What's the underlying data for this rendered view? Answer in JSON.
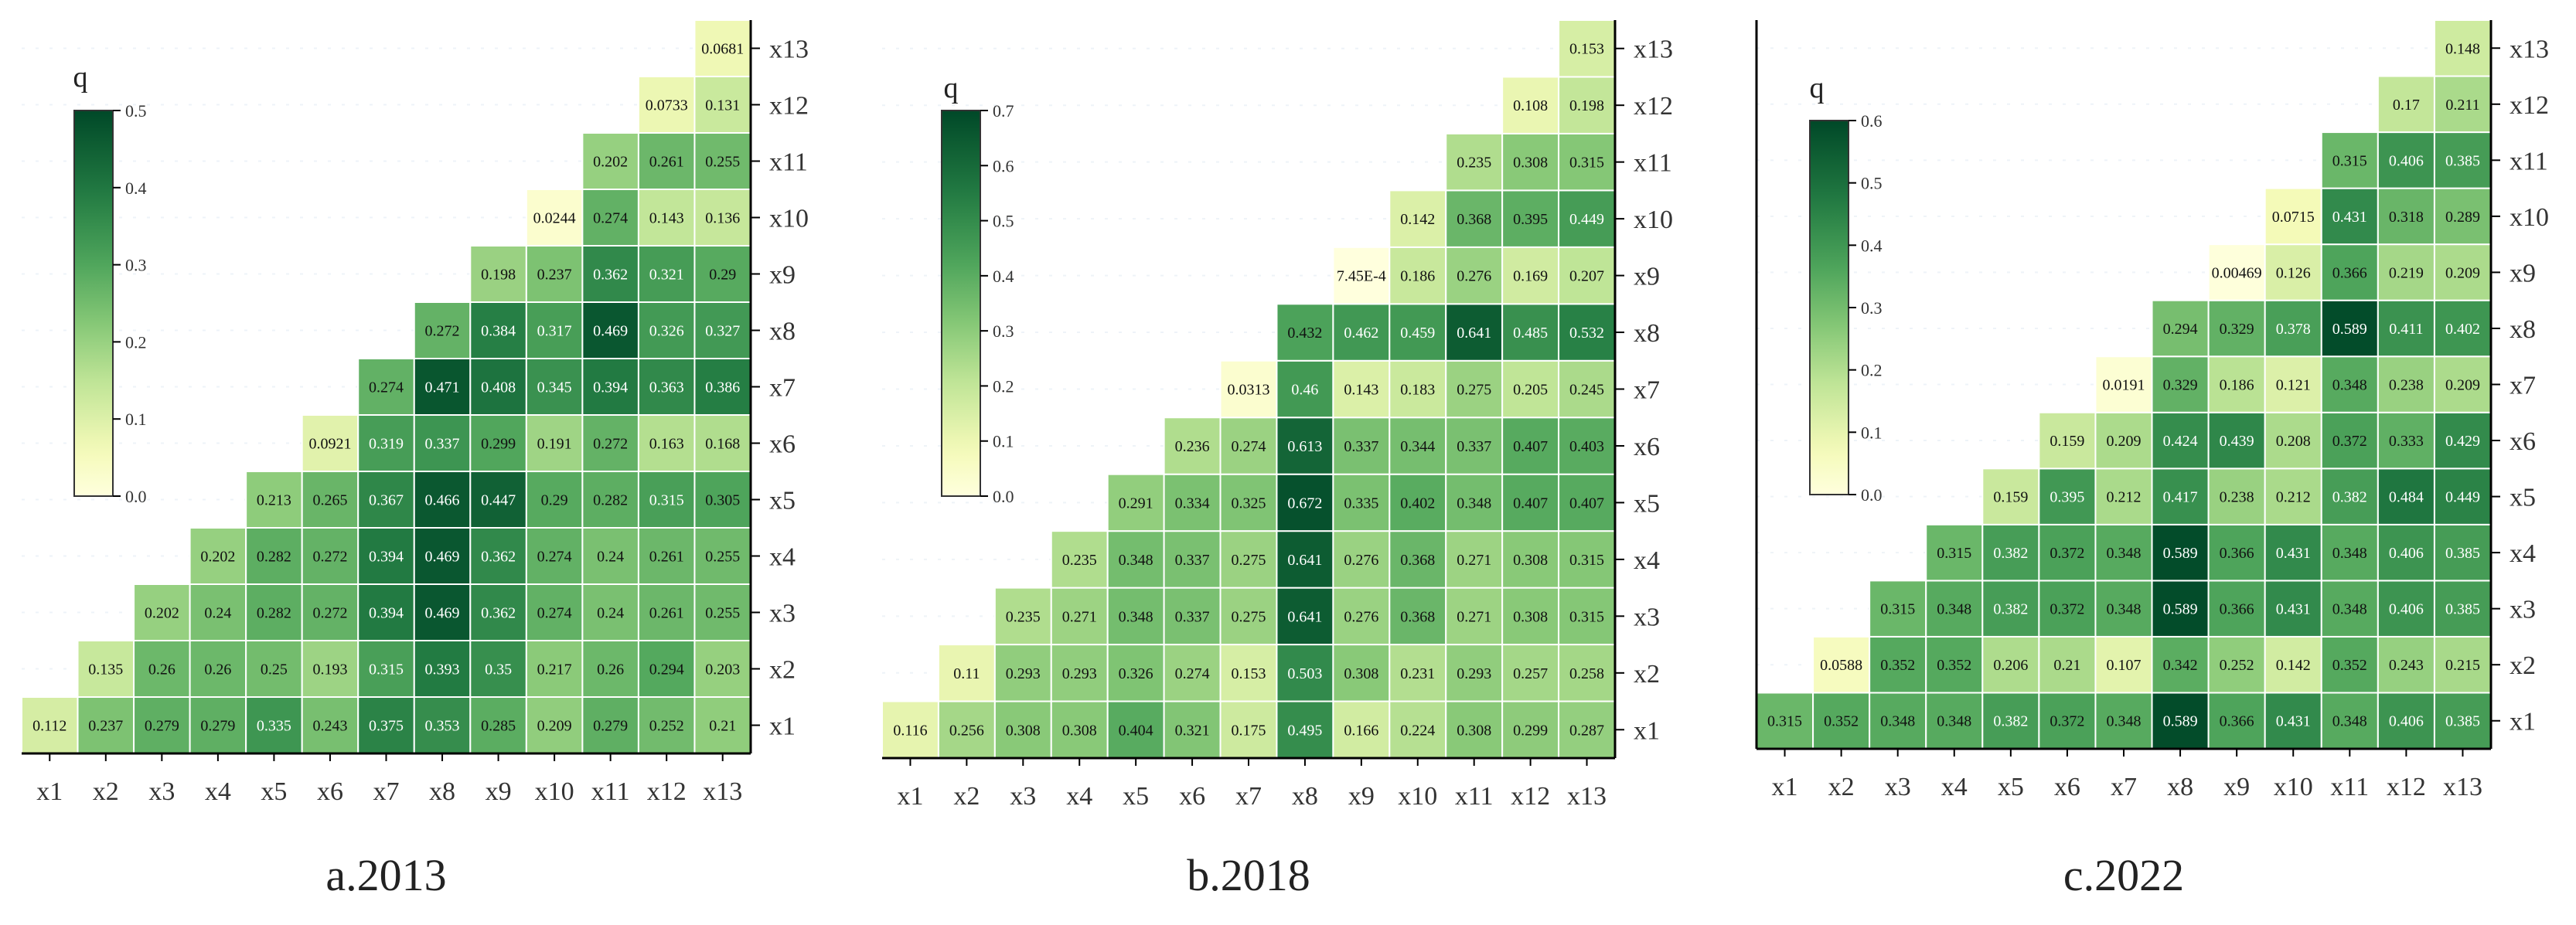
{
  "figure": {
    "captions": [
      "a.2013",
      "b.2018",
      "c.2022"
    ]
  },
  "chart_data": [
    {
      "type": "heatmap",
      "title": "a.2013",
      "colorbar_label": "q",
      "vmin": 0,
      "vmax": 0.5,
      "colorbar_ticks": [
        "0.0",
        "0.1",
        "0.2",
        "0.3",
        "0.4",
        "0.5"
      ],
      "x_labels": [
        "x1",
        "x2",
        "x3",
        "x4",
        "x5",
        "x6",
        "x7",
        "x8",
        "x9",
        "x10",
        "x11",
        "x12",
        "x13"
      ],
      "y_labels": [
        "x1",
        "x2",
        "x3",
        "x4",
        "x5",
        "x6",
        "x7",
        "x8",
        "x9",
        "x10",
        "x11",
        "x12",
        "x13"
      ],
      "rows": [
        [
          "0.112",
          "0.237",
          "0.279",
          "0.279",
          "0.335",
          "0.243",
          "0.375",
          "0.353",
          "0.285",
          "0.209",
          "0.279",
          "0.252",
          "0.21"
        ],
        [
          "0.135",
          "0.26",
          "0.26",
          "0.25",
          "0.193",
          "0.315",
          "0.393",
          "0.35",
          "0.217",
          "0.26",
          "0.294",
          "0.203"
        ],
        [
          "0.202",
          "0.24",
          "0.282",
          "0.272",
          "0.394",
          "0.469",
          "0.362",
          "0.274",
          "0.24",
          "0.261",
          "0.255"
        ],
        [
          "0.202",
          "0.282",
          "0.272",
          "0.394",
          "0.469",
          "0.362",
          "0.274",
          "0.24",
          "0.261",
          "0.255"
        ],
        [
          "0.213",
          "0.265",
          "0.367",
          "0.466",
          "0.447",
          "0.29",
          "0.282",
          "0.315",
          "0.305"
        ],
        [
          "0.0921",
          "0.319",
          "0.337",
          "0.299",
          "0.191",
          "0.272",
          "0.163",
          "0.168"
        ],
        [
          "0.274",
          "0.471",
          "0.408",
          "0.345",
          "0.394",
          "0.363",
          "0.386"
        ],
        [
          "0.272",
          "0.384",
          "0.317",
          "0.469",
          "0.326",
          "0.327"
        ],
        [
          "0.198",
          "0.237",
          "0.362",
          "0.321",
          "0.29"
        ],
        [
          "0.0244",
          "0.274",
          "0.143",
          "0.136"
        ],
        [
          "0.202",
          "0.261",
          "0.255"
        ],
        [
          "0.0733",
          "0.131"
        ],
        [
          "0.0681"
        ]
      ]
    },
    {
      "type": "heatmap",
      "title": "b.2018",
      "colorbar_label": "q",
      "vmin": 0,
      "vmax": 0.7,
      "colorbar_ticks": [
        "0.0",
        "0.1",
        "0.2",
        "0.3",
        "0.4",
        "0.5",
        "0.6",
        "0.7"
      ],
      "x_labels": [
        "x1",
        "x2",
        "x3",
        "x4",
        "x5",
        "x6",
        "x7",
        "x8",
        "x9",
        "x10",
        "x11",
        "x12",
        "x13"
      ],
      "y_labels": [
        "x1",
        "x2",
        "x3",
        "x4",
        "x5",
        "x6",
        "x7",
        "x8",
        "x9",
        "x10",
        "x11",
        "x12",
        "x13"
      ],
      "rows": [
        [
          "0.116",
          "0.256",
          "0.308",
          "0.308",
          "0.404",
          "0.321",
          "0.175",
          "0.495",
          "0.166",
          "0.224",
          "0.308",
          "0.299",
          "0.287"
        ],
        [
          "0.11",
          "0.293",
          "0.293",
          "0.326",
          "0.274",
          "0.153",
          "0.503",
          "0.308",
          "0.231",
          "0.293",
          "0.257",
          "0.258"
        ],
        [
          "0.235",
          "0.271",
          "0.348",
          "0.337",
          "0.275",
          "0.641",
          "0.276",
          "0.368",
          "0.271",
          "0.308",
          "0.315"
        ],
        [
          "0.235",
          "0.348",
          "0.337",
          "0.275",
          "0.641",
          "0.276",
          "0.368",
          "0.271",
          "0.308",
          "0.315"
        ],
        [
          "0.291",
          "0.334",
          "0.325",
          "0.672",
          "0.335",
          "0.402",
          "0.348",
          "0.407",
          "0.407"
        ],
        [
          "0.236",
          "0.274",
          "0.613",
          "0.337",
          "0.344",
          "0.337",
          "0.407",
          "0.403"
        ],
        [
          "0.0313",
          "0.46",
          "0.143",
          "0.183",
          "0.275",
          "0.205",
          "0.245"
        ],
        [
          "0.432",
          "0.462",
          "0.459",
          "0.641",
          "0.485",
          "0.532"
        ],
        [
          "7.45E-4",
          "0.186",
          "0.276",
          "0.169",
          "0.207"
        ],
        [
          "0.142",
          "0.368",
          "0.395",
          "0.449"
        ],
        [
          "0.235",
          "0.308",
          "0.315"
        ],
        [
          "0.108",
          "0.198"
        ],
        [
          "0.153"
        ]
      ]
    },
    {
      "type": "heatmap",
      "title": "c.2022",
      "colorbar_label": "q",
      "vmin": 0,
      "vmax": 0.6,
      "colorbar_ticks": [
        "0.0",
        "0.1",
        "0.2",
        "0.3",
        "0.4",
        "0.5",
        "0.6"
      ],
      "x_labels": [
        "x1",
        "x2",
        "x3",
        "x4",
        "x5",
        "x6",
        "x7",
        "x8",
        "x9",
        "x10",
        "x11",
        "x12",
        "x13"
      ],
      "y_labels": [
        "x1",
        "x2",
        "x3",
        "x4",
        "x5",
        "x6",
        "x7",
        "x8",
        "x9",
        "x10",
        "x11",
        "x12",
        "x13"
      ],
      "rows": [
        [
          "0.315",
          "0.352",
          "0.348",
          "0.348",
          "0.382",
          "0.372",
          "0.348",
          "0.589",
          "0.366",
          "0.431",
          "0.348",
          "0.406",
          "0.385"
        ],
        [
          "0.0588",
          "0.352",
          "0.352",
          "0.206",
          "0.21",
          "0.107",
          "0.342",
          "0.252",
          "0.142",
          "0.352",
          "0.243",
          "0.215"
        ],
        [
          "0.315",
          "0.348",
          "0.382",
          "0.372",
          "0.348",
          "0.589",
          "0.366",
          "0.431",
          "0.348",
          "0.406",
          "0.385"
        ],
        [
          "0.315",
          "0.382",
          "0.372",
          "0.348",
          "0.589",
          "0.366",
          "0.431",
          "0.348",
          "0.406",
          "0.385"
        ],
        [
          "0.159",
          "0.395",
          "0.212",
          "0.417",
          "0.238",
          "0.212",
          "0.382",
          "0.484",
          "0.449"
        ],
        [
          "0.159",
          "0.209",
          "0.424",
          "0.439",
          "0.208",
          "0.372",
          "0.333",
          "0.429"
        ],
        [
          "0.0191",
          "0.329",
          "0.186",
          "0.121",
          "0.348",
          "0.238",
          "0.209"
        ],
        [
          "0.294",
          "0.329",
          "0.378",
          "0.589",
          "0.411",
          "0.402"
        ],
        [
          "0.00469",
          "0.126",
          "0.366",
          "0.219",
          "0.209"
        ],
        [
          "0.0715",
          "0.431",
          "0.318",
          "0.289"
        ],
        [
          "0.315",
          "0.406",
          "0.385"
        ],
        [
          "0.17",
          "0.211"
        ],
        [
          "0.148"
        ]
      ]
    }
  ]
}
